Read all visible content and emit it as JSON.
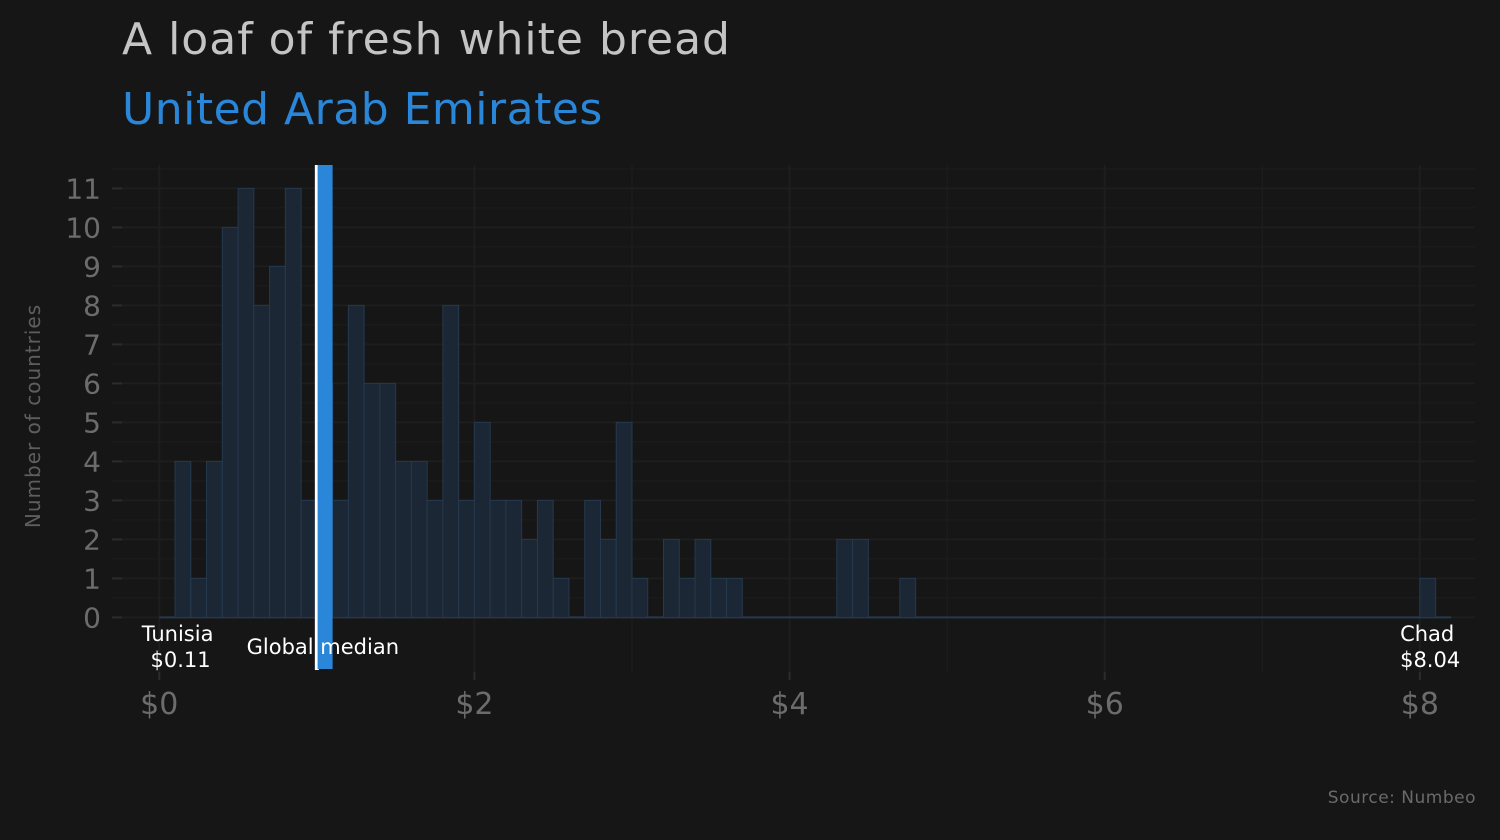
{
  "chart_data": {
    "type": "bar",
    "title": "A loaf of fresh white bread",
    "subtitle": "United Arab Emirates",
    "ylabel": "Number of countries",
    "xlabel": "",
    "source": "Source: Numbeo",
    "bin_width": 0.1,
    "bins": [
      {
        "x0": 0.1,
        "count": 4
      },
      {
        "x0": 0.2,
        "count": 1
      },
      {
        "x0": 0.3,
        "count": 4
      },
      {
        "x0": 0.4,
        "count": 10
      },
      {
        "x0": 0.5,
        "count": 11
      },
      {
        "x0": 0.6,
        "count": 8
      },
      {
        "x0": 0.7,
        "count": 9
      },
      {
        "x0": 0.8,
        "count": 11
      },
      {
        "x0": 0.9,
        "count": 3
      },
      {
        "x0": 1.0,
        "count": 6
      },
      {
        "x0": 1.1,
        "count": 3
      },
      {
        "x0": 1.2,
        "count": 8
      },
      {
        "x0": 1.3,
        "count": 6
      },
      {
        "x0": 1.4,
        "count": 6
      },
      {
        "x0": 1.5,
        "count": 4
      },
      {
        "x0": 1.6,
        "count": 4
      },
      {
        "x0": 1.7,
        "count": 3
      },
      {
        "x0": 1.8,
        "count": 8
      },
      {
        "x0": 1.9,
        "count": 3
      },
      {
        "x0": 2.0,
        "count": 5
      },
      {
        "x0": 2.1,
        "count": 3
      },
      {
        "x0": 2.2,
        "count": 3
      },
      {
        "x0": 2.3,
        "count": 2
      },
      {
        "x0": 2.4,
        "count": 3
      },
      {
        "x0": 2.5,
        "count": 1
      },
      {
        "x0": 2.7,
        "count": 3
      },
      {
        "x0": 2.8,
        "count": 2
      },
      {
        "x0": 2.9,
        "count": 5
      },
      {
        "x0": 3.0,
        "count": 1
      },
      {
        "x0": 3.2,
        "count": 2
      },
      {
        "x0": 3.3,
        "count": 1
      },
      {
        "x0": 3.4,
        "count": 2
      },
      {
        "x0": 3.5,
        "count": 1
      },
      {
        "x0": 3.6,
        "count": 1
      },
      {
        "x0": 4.3,
        "count": 2
      },
      {
        "x0": 4.4,
        "count": 2
      },
      {
        "x0": 4.7,
        "count": 1
      },
      {
        "x0": 8.0,
        "count": 1
      }
    ],
    "x_ticks": [
      0,
      2,
      4,
      6,
      8
    ],
    "x_tick_labels": [
      "$0",
      "$2",
      "$4",
      "$6",
      "$8"
    ],
    "y_ticks": [
      0,
      1,
      2,
      3,
      4,
      5,
      6,
      7,
      8,
      9,
      10,
      11
    ],
    "xlim": [
      -0.3,
      8.35
    ],
    "ylim": [
      -1.4,
      11.6
    ],
    "grid": true,
    "median": {
      "label": "Global median",
      "value": 1.0
    },
    "highlight": {
      "name": "United Arab Emirates",
      "value": 1.1,
      "color": "#2a86d9"
    },
    "annotations": [
      {
        "name": "Tunisia",
        "value_label": "$0.11",
        "value": 0.11
      },
      {
        "name": "Chad",
        "value_label": "$8.04",
        "value": 8.04
      }
    ],
    "colors": {
      "background": "#161616",
      "bar_fill": "#1b2734",
      "bar_stroke": "#26394d",
      "grid": "#1e1e1e",
      "median_line": "#ffffff",
      "highlight": "#2a86d9"
    }
  }
}
